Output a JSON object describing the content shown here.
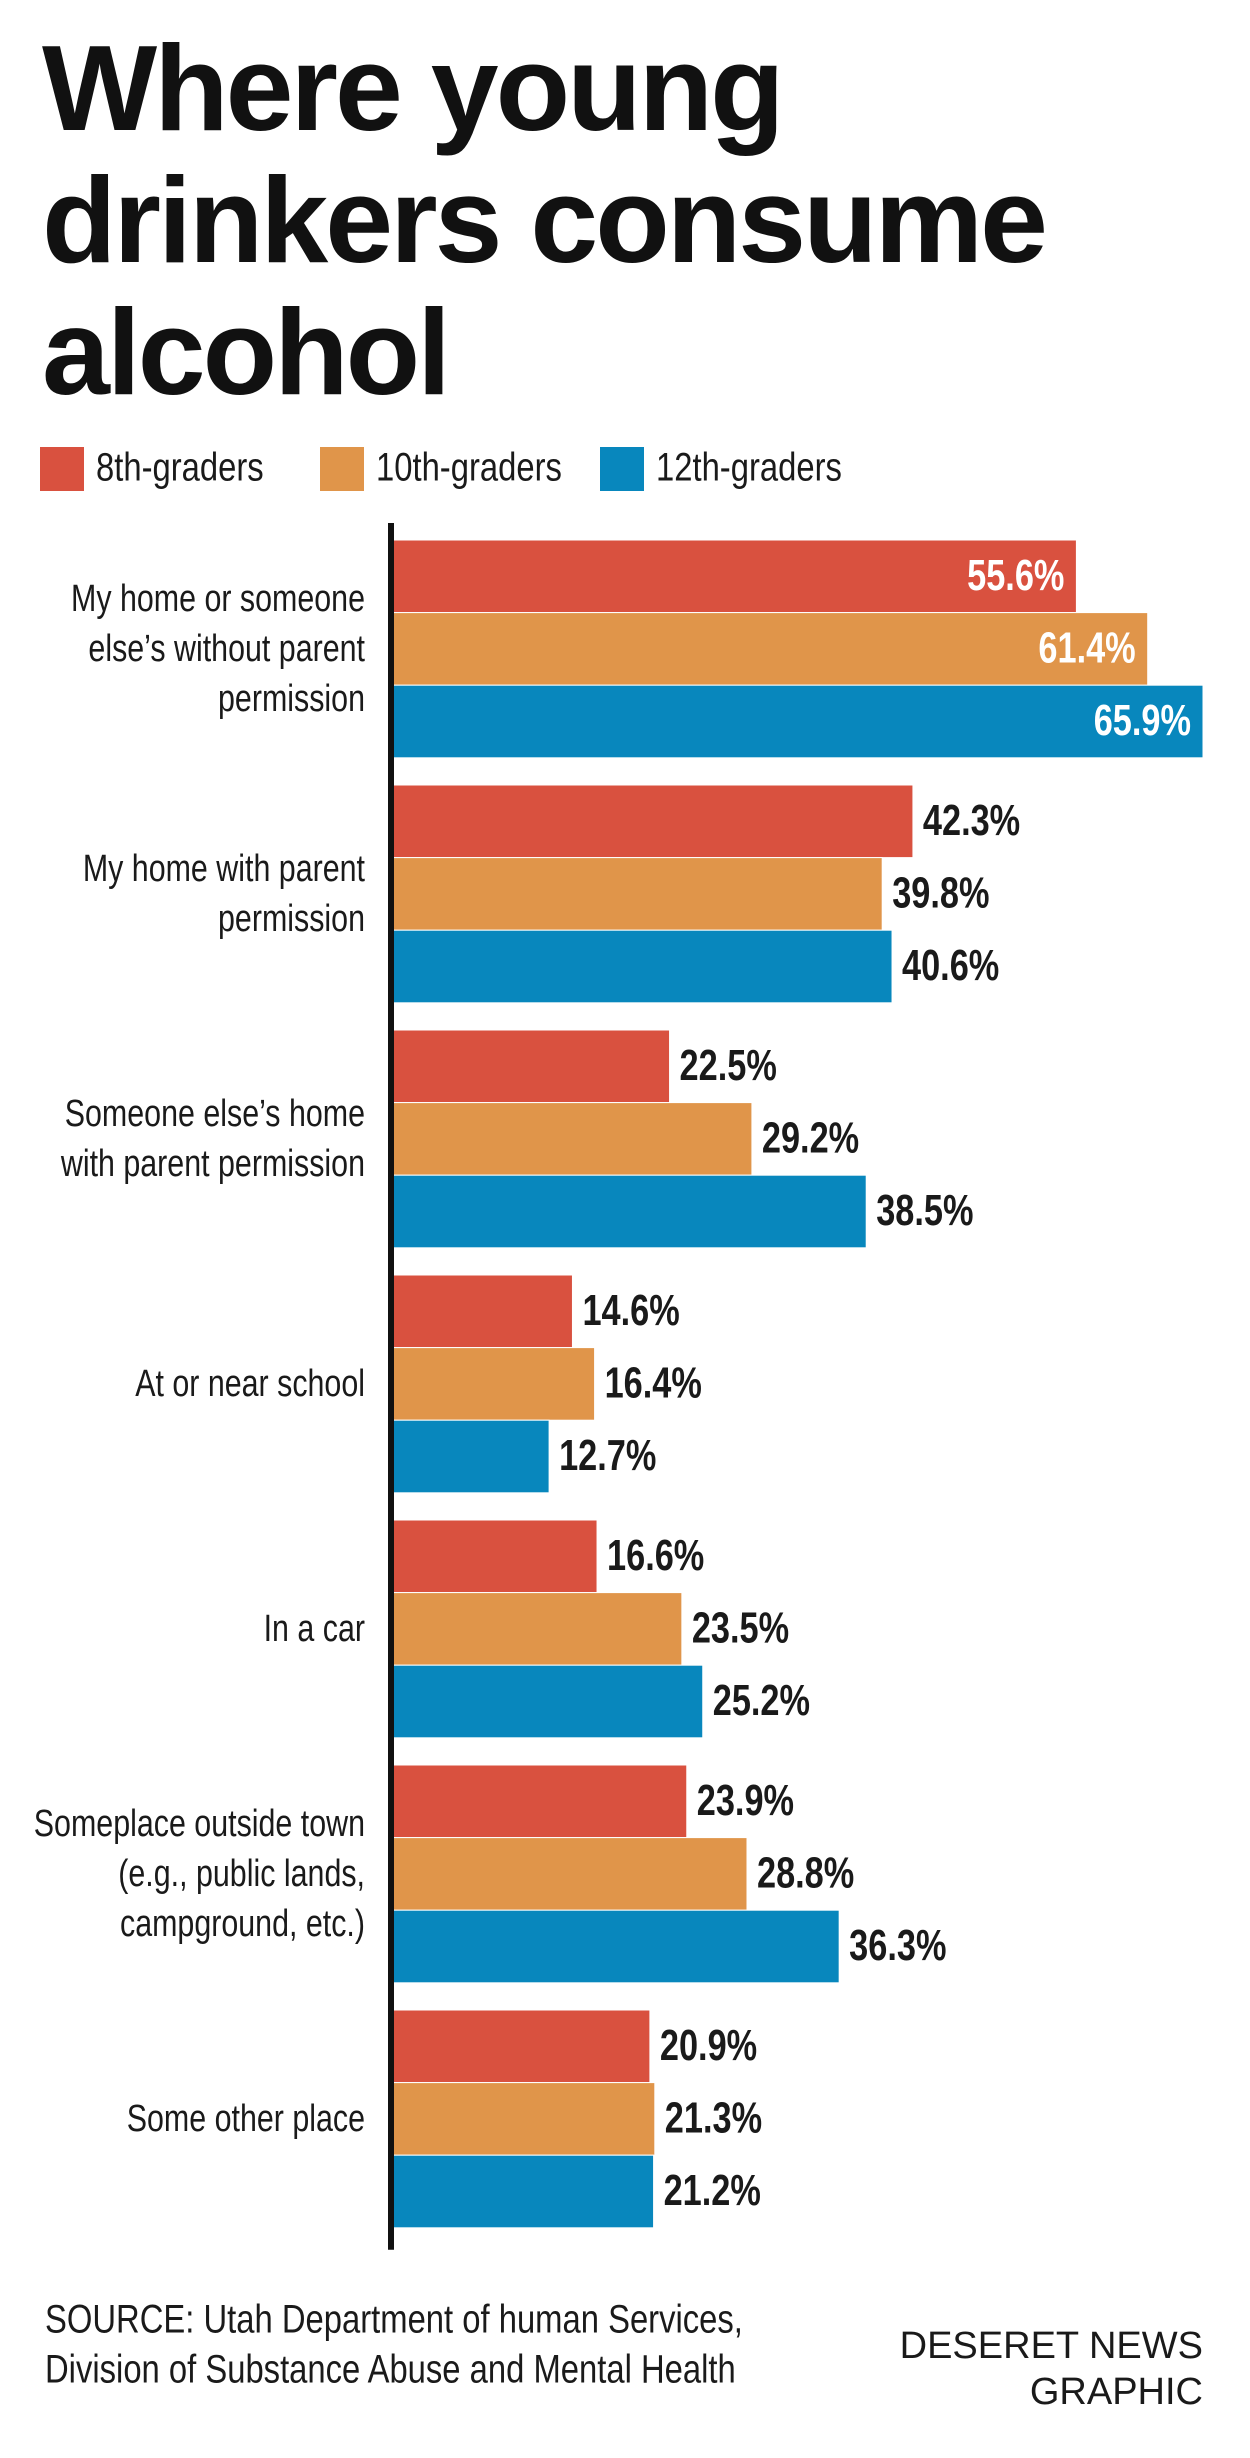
{
  "chart_data": {
    "type": "hbar",
    "title": "Where young drinkers consume alcohol",
    "categories": [
      "My home or someone else’s without parent permission",
      "My home with parent permission",
      "Someone else’s home with parent permission",
      "At or near school",
      "In a car",
      "Someplace outside town (e.g., public lands, campground, etc.)",
      "Some other place"
    ],
    "series": [
      {
        "name": "8th-graders",
        "color": "#d9513f",
        "values": [
          55.6,
          42.3,
          22.5,
          14.6,
          16.6,
          23.9,
          20.9
        ],
        "value_labels": [
          "55.6%",
          "42.3%",
          "22.5%",
          "14.6%",
          "16.6%",
          "23.9%",
          "20.9%"
        ]
      },
      {
        "name": "10th-graders",
        "color": "#e0954a",
        "values": [
          61.4,
          39.8,
          29.2,
          16.4,
          23.5,
          28.8,
          21.3
        ],
        "value_labels": [
          "61.4%",
          "39.8%",
          "29.2%",
          "16.4%",
          "23.5%",
          "28.8%",
          "21.3%"
        ]
      },
      {
        "name": "12th-graders",
        "color": "#0887bd",
        "values": [
          65.9,
          40.6,
          38.5,
          12.7,
          25.2,
          36.3,
          21.2
        ],
        "value_labels": [
          "65.9%",
          "40.6%",
          "38.5%",
          "12.7%",
          "25.2%",
          "36.3%",
          "21.2%"
        ]
      }
    ],
    "source": [
      "SOURCE: Utah Department of human Services,",
      "Division of Substance Abuse and Mental Health"
    ],
    "credit": [
      "DESERET NEWS",
      "GRAPHIC"
    ]
  }
}
